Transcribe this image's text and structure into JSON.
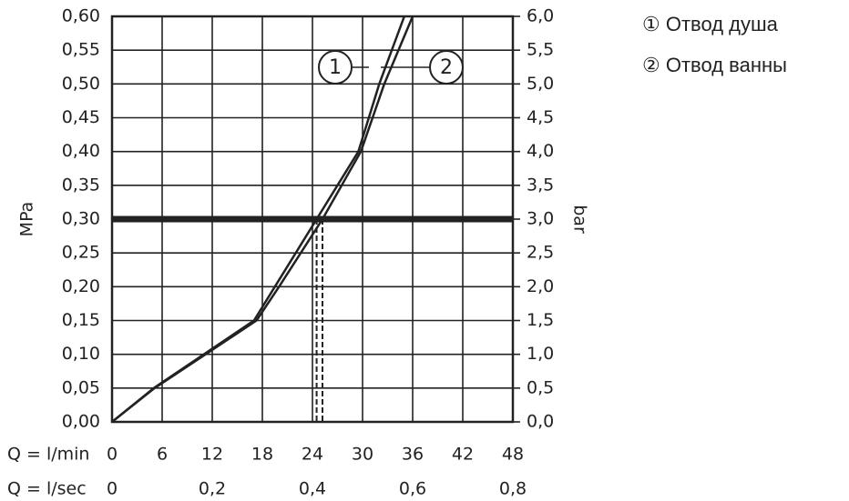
{
  "chart_data": {
    "type": "line",
    "xlabel": "Q = l/min",
    "x2label": "Q = l/sec",
    "ylabel": "MPa",
    "y2label": "bar",
    "xlim": [
      0,
      48
    ],
    "xticks": [
      0,
      6,
      12,
      18,
      24,
      30,
      36,
      42,
      48
    ],
    "x2lim": [
      0,
      0.8
    ],
    "x2ticks": [
      0,
      {
        "value": 0.2,
        "label": "0,2"
      },
      {
        "value": 0.4,
        "label": "0,4"
      },
      {
        "value": 0.6,
        "label": "0,6"
      },
      {
        "value": 0.8,
        "label": "0,8"
      }
    ],
    "ylim": [
      0,
      0.6
    ],
    "yticks": [
      {
        "value": 0,
        "label": "0,00"
      },
      {
        "value": 0.05,
        "label": "0,05"
      },
      {
        "value": 0.1,
        "label": "0,10"
      },
      {
        "value": 0.15,
        "label": "0,15"
      },
      {
        "value": 0.2,
        "label": "0,20"
      },
      {
        "value": 0.25,
        "label": "0,25"
      },
      {
        "value": 0.3,
        "label": "0,30"
      },
      {
        "value": 0.35,
        "label": "0,35"
      },
      {
        "value": 0.4,
        "label": "0,40"
      },
      {
        "value": 0.45,
        "label": "0,45"
      },
      {
        "value": 0.5,
        "label": "0,50"
      },
      {
        "value": 0.55,
        "label": "0,55"
      },
      {
        "value": 0.6,
        "label": "0,60"
      }
    ],
    "y2lim": [
      0,
      6
    ],
    "y2ticks": [
      {
        "value": 0,
        "label": "0,0"
      },
      {
        "value": 0.5,
        "label": "0,5"
      },
      {
        "value": 1,
        "label": "1,0"
      },
      {
        "value": 1.5,
        "label": "1,5"
      },
      {
        "value": 2,
        "label": "2,0"
      },
      {
        "value": 2.5,
        "label": "2,5"
      },
      {
        "value": 3,
        "label": "3,0"
      },
      {
        "value": 3.5,
        "label": "3,5"
      },
      {
        "value": 4,
        "label": "4,0"
      },
      {
        "value": 4.5,
        "label": "4,5"
      },
      {
        "value": 5,
        "label": "5,0"
      },
      {
        "value": 5.5,
        "label": "5,5"
      },
      {
        "value": 6,
        "label": "6,0"
      }
    ],
    "grid": true,
    "color": "#222222",
    "reference_y": 0.3,
    "reference_x": [
      24.5,
      25.2
    ],
    "series": [
      {
        "name": "① Отвод душа",
        "label": "1",
        "color": "#222222",
        "x": [
          0,
          5,
          11,
          17,
          19.5,
          22,
          24.5,
          27,
          29.5,
          32,
          35
        ],
        "values": [
          0,
          0.05,
          0.1,
          0.15,
          0.2,
          0.25,
          0.3,
          0.35,
          0.4,
          0.5,
          0.6
        ]
      },
      {
        "name": "② Отвод ванны",
        "label": "2",
        "color": "#222222",
        "x": [
          0,
          5.1,
          11.2,
          17.3,
          20,
          22.6,
          25.2,
          27.5,
          29.8,
          32.6,
          36
        ],
        "values": [
          0,
          0.05,
          0.1,
          0.15,
          0.2,
          0.25,
          0.3,
          0.35,
          0.4,
          0.5,
          0.6
        ]
      }
    ]
  }
}
